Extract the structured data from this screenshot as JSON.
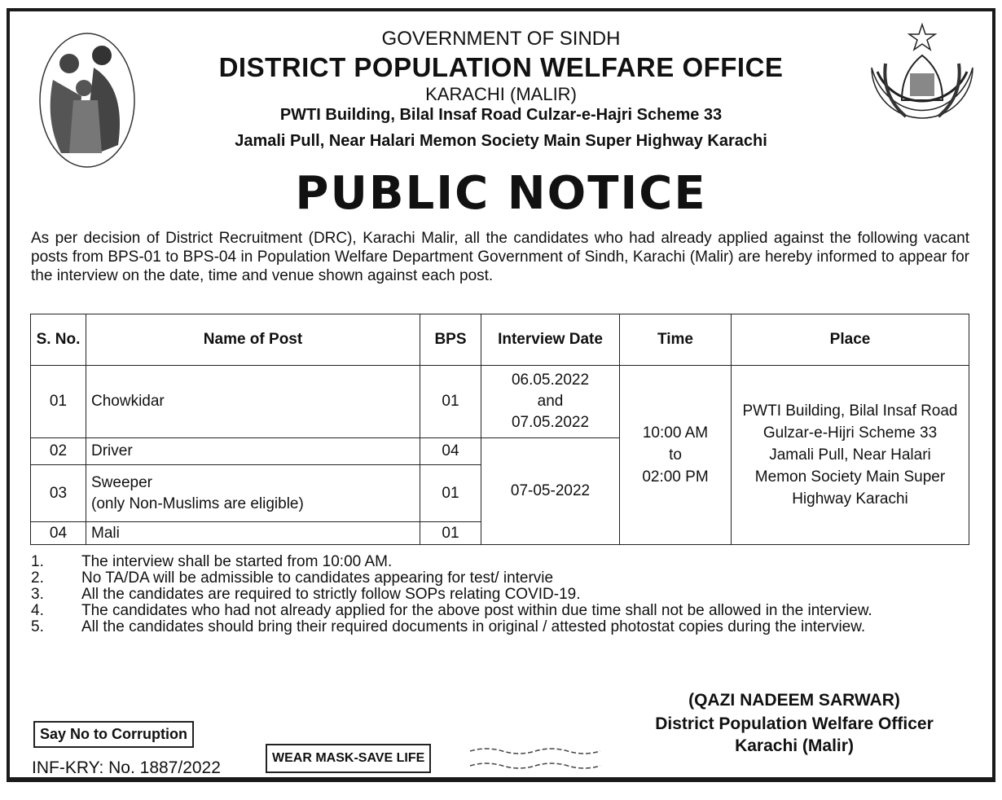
{
  "header": {
    "line1": "GOVERNMENT OF SINDH",
    "line2": "DISTRICT POPULATION WELFARE OFFICE",
    "line3": "KARACHI (MALIR)",
    "line4": "PWTI Building, Bilal Insaf Road Culzar-e-Hajri Scheme 33",
    "line5": "Jamali Pull, Near Halari Memon Society Main Super Highway Karachi"
  },
  "title": "PUBLIC NOTICE",
  "paragraph": "As per decision of District Recruitment (DRC), Karachi Malir, all the candidates who had already applied against the following vacant posts from BPS-01 to BPS-04 in Population Welfare Department Government of Sindh, Karachi (Malir) are hereby informed to appear for the interview on the date, time and venue shown against each post.",
  "table": {
    "headers": [
      "S. No.",
      "Name of Post",
      "BPS",
      "Interview Date",
      "Time",
      "Place"
    ],
    "rows": [
      {
        "sno": "01",
        "post": "Chowkidar",
        "note": "",
        "bps": "01"
      },
      {
        "sno": "02",
        "post": "Driver",
        "note": "",
        "bps": "04"
      },
      {
        "sno": "03",
        "post": "Sweeper",
        "note": "(only Non-Muslims are eligible)",
        "bps": "01"
      },
      {
        "sno": "04",
        "post": "Mali",
        "note": "",
        "bps": "01"
      }
    ],
    "date_1": [
      "06.05.2022",
      "and",
      "07.05.2022"
    ],
    "date_2": "07-05-2022",
    "time": [
      "10:00 AM",
      "to",
      "02:00 PM"
    ],
    "place": "PWTI Building, Bilal Insaf Road Gulzar-e-Hijri Scheme 33 Jamali Pull, Near Halari Memon Society Main Super Highway Karachi"
  },
  "notes": [
    {
      "n": "1.",
      "t": "The interview shall be started from 10:00 AM."
    },
    {
      "n": "2.",
      "t": "No TA/DA will be admissible to candidates appearing for test/ intervie"
    },
    {
      "n": "3.",
      "t": "All the candidates are required to strictly follow SOPs relating COVID-19."
    },
    {
      "n": "4.",
      "t": "The candidates who had not already applied for the above post within due time shall not be allowed in the interview."
    },
    {
      "n": "5.",
      "t": "All the candidates should bring their required documents in original / attested photostat copies during the interview."
    }
  ],
  "signature": {
    "name": "(QAZI NADEEM SARWAR)",
    "designation": "District Population Welfare Officer",
    "location": "Karachi (Malir)"
  },
  "footer": {
    "corruption": "Say No to Corruption",
    "ref": "INF-KRY: No. 1887/2022",
    "mask": "WEAR MASK-SAVE LIFE"
  }
}
